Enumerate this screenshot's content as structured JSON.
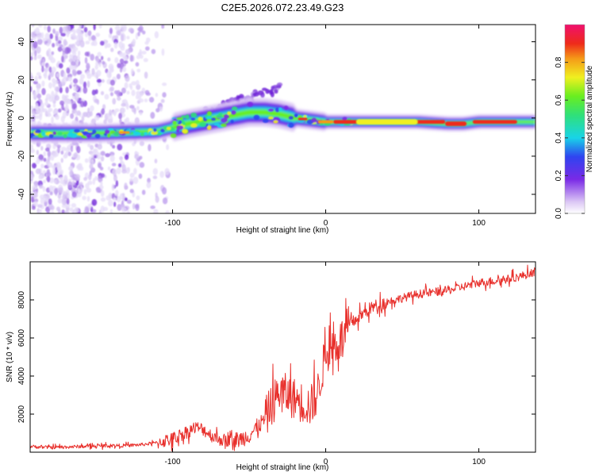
{
  "title": "C2E5.2026.072.23.49.G23",
  "colors": {
    "axis": "#000000",
    "snr_line": "#e8302c",
    "background": "#ffffff"
  },
  "chart_data": [
    {
      "type": "heatmap",
      "name": "spectrogram",
      "xlabel": "Height of straight line (km)",
      "ylabel": "Frequency (Hz)",
      "xlim": [
        -193,
        137
      ],
      "ylim": [
        -50,
        49
      ],
      "xticks": [
        -100,
        0,
        100
      ],
      "xtick_labels": [
        "-100",
        "0",
        "100"
      ],
      "yticks": [
        -40,
        -20,
        0,
        20,
        40
      ],
      "ytick_labels": [
        "-40",
        "-20",
        "0",
        "20",
        "40"
      ],
      "ridge": {
        "x": [
          -193,
          -150,
          -110,
          -90,
          -70,
          -50,
          -40,
          -30,
          -20,
          -10,
          0,
          10,
          30,
          60,
          80,
          90,
          100,
          120,
          137
        ],
        "freq_hz": [
          -8,
          -8,
          -7,
          -3,
          0,
          3,
          3,
          2,
          0,
          -1,
          -2,
          -2,
          -2,
          -2,
          -3,
          -3,
          -2,
          -2,
          -2
        ]
      },
      "colorbar": {
        "label": "Normalized spectral amplitude",
        "range": [
          0.0,
          1.0
        ],
        "ticks": [
          0.0,
          0.2,
          0.4,
          0.6,
          0.8
        ],
        "tick_labels": [
          "0.0",
          "0.2",
          "0.4",
          "0.6",
          "0.8"
        ]
      }
    },
    {
      "type": "line",
      "name": "snr",
      "xlabel": "Height of straight line (km)",
      "ylabel": "SNR (10 * v/v)",
      "xlim": [
        -193,
        137
      ],
      "ylim": [
        0,
        10000
      ],
      "xticks": [
        -100,
        0,
        100
      ],
      "xtick_labels": [
        "-100",
        "0",
        "100"
      ],
      "yticks": [
        2000,
        4000,
        6000,
        8000
      ],
      "ytick_labels": [
        "2000",
        "4000",
        "6000",
        "8000"
      ],
      "series": [
        {
          "name": "SNR",
          "x": [
            -193,
            -180,
            -160,
            -140,
            -130,
            -120,
            -110,
            -100,
            -95,
            -90,
            -85,
            -80,
            -75,
            -70,
            -65,
            -60,
            -55,
            -50,
            -45,
            -40,
            -35,
            -30,
            -25,
            -20,
            -15,
            -10,
            -5,
            0,
            5,
            10,
            15,
            20,
            25,
            30,
            40,
            50,
            60,
            70,
            80,
            90,
            100,
            110,
            120,
            130,
            137
          ],
          "y": [
            300,
            250,
            300,
            350,
            350,
            400,
            500,
            700,
            900,
            1100,
            1300,
            1200,
            900,
            700,
            600,
            600,
            700,
            900,
            1300,
            1700,
            2500,
            3200,
            3000,
            2800,
            2600,
            2400,
            3200,
            5200,
            5600,
            5900,
            6600,
            7000,
            7300,
            7600,
            7900,
            8100,
            8300,
            8400,
            8500,
            8700,
            8900,
            9000,
            9100,
            9300,
            9500
          ]
        }
      ]
    }
  ]
}
